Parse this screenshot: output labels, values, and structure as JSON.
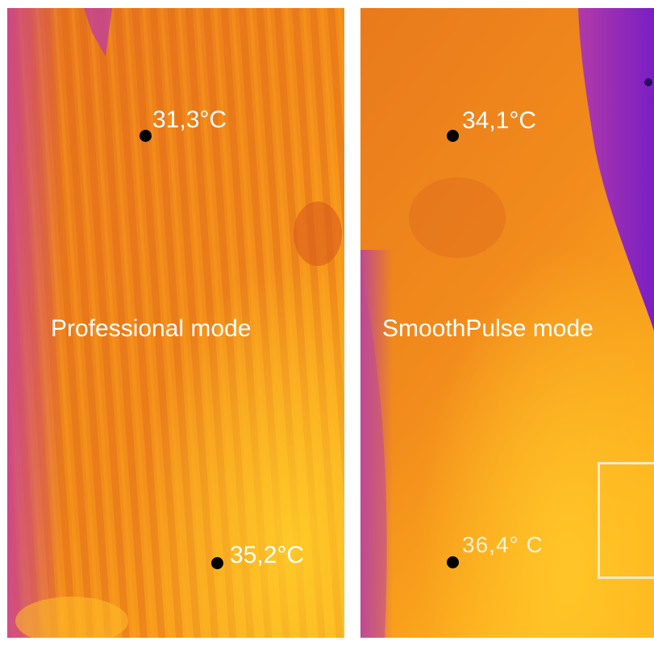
{
  "panels": {
    "left": {
      "mode": "Professional mode",
      "readings": [
        "31,3°C",
        "35,2°C"
      ]
    },
    "right": {
      "mode": "SmoothPulse mode",
      "readings": [
        "34,1°C",
        "36,4° C"
      ]
    }
  },
  "palette": {
    "warm": "#f07d18",
    "hot": "#ffb21a",
    "cool_magenta": "#b43ca0",
    "cold_purple": "#7d1ec0",
    "marker": "#000000",
    "label": "#ffffff"
  }
}
